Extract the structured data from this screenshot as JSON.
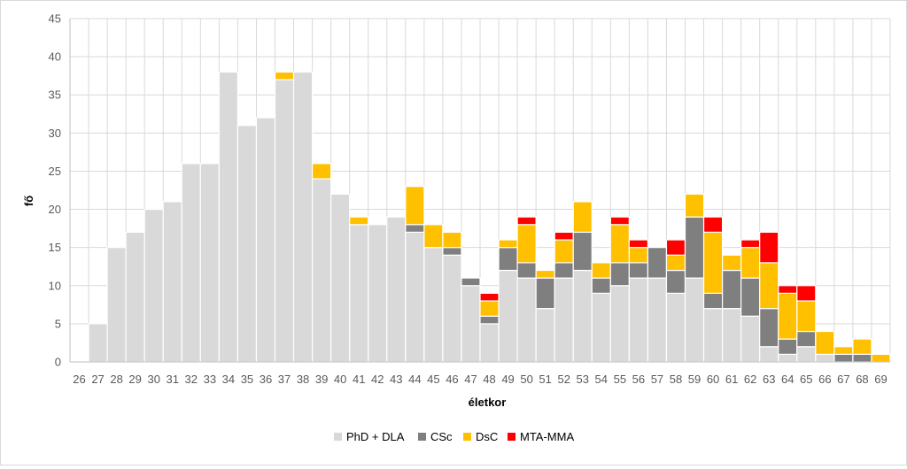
{
  "chart_data": {
    "type": "bar",
    "stacked": true,
    "xlabel": "életkor",
    "ylabel": "fő",
    "ylim": [
      0,
      45
    ],
    "ytick_step": 5,
    "grid": true,
    "legend_position": "bottom",
    "categories": [
      "26",
      "27",
      "28",
      "29",
      "30",
      "31",
      "32",
      "33",
      "34",
      "35",
      "36",
      "37",
      "38",
      "39",
      "40",
      "41",
      "42",
      "43",
      "44",
      "45",
      "46",
      "47",
      "48",
      "49",
      "50",
      "51",
      "52",
      "53",
      "54",
      "55",
      "56",
      "57",
      "58",
      "59",
      "60",
      "61",
      "62",
      "63",
      "64",
      "65",
      "66",
      "67",
      "68",
      "69"
    ],
    "series": [
      {
        "name": "PhD + DLA",
        "color": "#d9d9d9",
        "values": [
          0,
          5,
          15,
          17,
          20,
          21,
          26,
          26,
          38,
          31,
          32,
          37,
          38,
          24,
          22,
          18,
          18,
          19,
          17,
          15,
          14,
          10,
          5,
          12,
          11,
          7,
          11,
          12,
          9,
          10,
          11,
          11,
          9,
          11,
          7,
          7,
          6,
          2,
          1,
          2,
          1,
          0,
          0,
          0
        ]
      },
      {
        "name": "CSc",
        "color": "#7f7f7f",
        "values": [
          0,
          0,
          0,
          0,
          0,
          0,
          0,
          0,
          0,
          0,
          0,
          0,
          0,
          0,
          0,
          0,
          0,
          0,
          1,
          0,
          1,
          1,
          1,
          3,
          2,
          4,
          2,
          5,
          2,
          3,
          2,
          4,
          3,
          8,
          2,
          5,
          5,
          5,
          2,
          2,
          0,
          1,
          1,
          0
        ]
      },
      {
        "name": "DsC",
        "color": "#ffc000",
        "values": [
          0,
          0,
          0,
          0,
          0,
          0,
          0,
          0,
          0,
          0,
          0,
          1,
          0,
          2,
          0,
          1,
          0,
          0,
          5,
          3,
          2,
          0,
          2,
          1,
          5,
          1,
          3,
          4,
          2,
          5,
          2,
          0,
          2,
          3,
          8,
          2,
          4,
          6,
          6,
          4,
          3,
          1,
          2,
          1
        ]
      },
      {
        "name": "MTA-MMA",
        "color": "#ff0000",
        "values": [
          0,
          0,
          0,
          0,
          0,
          0,
          0,
          0,
          0,
          0,
          0,
          0,
          0,
          0,
          0,
          0,
          0,
          0,
          0,
          0,
          0,
          0,
          1,
          0,
          1,
          0,
          1,
          0,
          0,
          1,
          1,
          0,
          2,
          0,
          2,
          0,
          1,
          4,
          1,
          2,
          0,
          0,
          0,
          0
        ]
      }
    ]
  }
}
